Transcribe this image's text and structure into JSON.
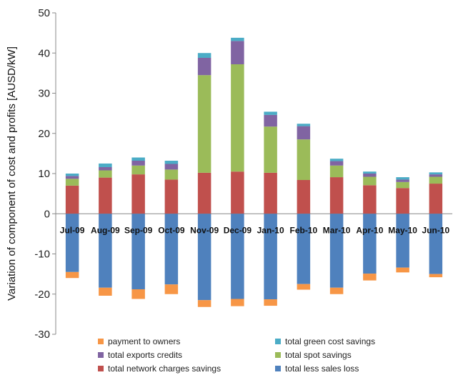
{
  "chart_data": {
    "type": "bar",
    "stacked": true,
    "title": "",
    "xlabel": "",
    "ylabel": "Variation of component of cost and profits  [AUSD/kW]",
    "ylim": [
      -30,
      50
    ],
    "yticks": [
      -30,
      -20,
      -10,
      0,
      10,
      20,
      30,
      40,
      50
    ],
    "grid": false,
    "legend_position": "bottom",
    "categories": [
      "Jul-09",
      "Aug-09",
      "Sep-09",
      "Oct-09",
      "Nov-09",
      "Dec-09",
      "Jan-10",
      "Feb-10",
      "Mar-10",
      "Apr-10",
      "May-10",
      "Jun-10"
    ],
    "series": [
      {
        "name": "total network charges savings",
        "color": "#c0504d",
        "values": [
          7.0,
          9.0,
          9.8,
          8.5,
          10.2,
          10.5,
          10.2,
          8.4,
          9.1,
          7.1,
          6.4,
          7.5
        ]
      },
      {
        "name": "total spot savings",
        "color": "#9bbb59",
        "values": [
          1.7,
          1.8,
          2.2,
          2.5,
          24.3,
          26.7,
          11.5,
          10.1,
          2.9,
          2.1,
          1.5,
          1.7
        ]
      },
      {
        "name": "total exports credits",
        "color": "#8064a2",
        "values": [
          0.7,
          0.8,
          1.2,
          1.4,
          4.3,
          5.8,
          2.9,
          3.3,
          1.1,
          0.8,
          0.6,
          0.6
        ]
      },
      {
        "name": "total green cost savings",
        "color": "#4bacc6",
        "values": [
          0.6,
          0.9,
          0.8,
          0.8,
          1.2,
          0.8,
          0.8,
          0.6,
          0.6,
          0.5,
          0.6,
          0.5
        ]
      },
      {
        "name": "total less sales loss",
        "color": "#4f81bd",
        "values": [
          -14.5,
          -18.4,
          -18.8,
          -17.6,
          -21.5,
          -21.2,
          -21.3,
          -17.5,
          -18.4,
          -14.9,
          -13.4,
          -15.0
        ]
      },
      {
        "name": "payment to owners",
        "color": "#f79646",
        "values": [
          -1.5,
          -2.0,
          -2.4,
          -2.4,
          -1.7,
          -1.8,
          -1.6,
          -1.4,
          -1.6,
          -1.7,
          -1.2,
          -0.8
        ]
      }
    ]
  }
}
